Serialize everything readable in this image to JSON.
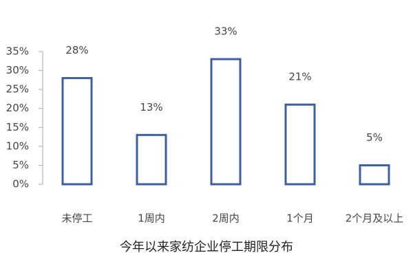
{
  "chart_data": {
    "type": "bar",
    "title": "今年以来家纺企业停工期限分布",
    "categories": [
      "未停工",
      "1周内",
      "2周内",
      "1个月",
      "2个月及以上"
    ],
    "values": [
      28,
      13,
      33,
      21,
      5
    ],
    "value_labels": [
      "28%",
      "13%",
      "33%",
      "21%",
      "5%"
    ],
    "color": "#3f5e9e",
    "ylim": [
      0,
      35
    ],
    "yticks": [
      {
        "value": 0,
        "label": "0%"
      },
      {
        "value": 5,
        "label": "5%"
      },
      {
        "value": 10,
        "label": "10%"
      },
      {
        "value": 15,
        "label": "15%"
      },
      {
        "value": 20,
        "label": "20%"
      },
      {
        "value": 25,
        "label": "25%"
      },
      {
        "value": 30,
        "label": "30%"
      },
      {
        "value": 35,
        "label": "35%"
      }
    ],
    "grid": false
  }
}
